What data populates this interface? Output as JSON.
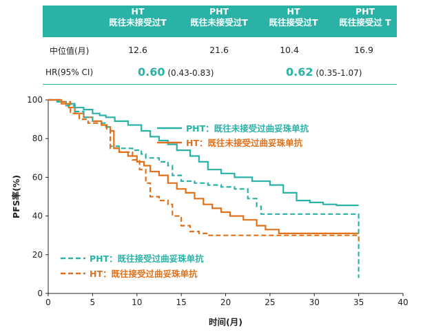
{
  "table": {
    "headers": [
      {
        "arm": "HT",
        "sub": "既往未接受过T"
      },
      {
        "arm": "PHT",
        "sub": "既往未接受过T"
      },
      {
        "arm": "HT",
        "sub": "既往接受过T"
      },
      {
        "arm": "PHT",
        "sub": "既往接受过 T"
      }
    ],
    "median_label": "中位值(月)",
    "median_values": [
      "12.6",
      "21.6",
      "10.4",
      "16.9"
    ],
    "hr_label": "HR(95% CI)",
    "hr": [
      {
        "value": "0.60",
        "ci": "(0.43-0.83)"
      },
      {
        "value": "0.62",
        "ci": "(0.35-1.07)"
      }
    ]
  },
  "colors": {
    "teal": "#2ab2a6",
    "orange": "#e0711c"
  },
  "chart_data": {
    "type": "line",
    "xlabel": "时间(月)",
    "ylabel": "PFS率(%)",
    "xlim": [
      0,
      40
    ],
    "ylim": [
      0,
      100
    ],
    "xticks": [
      0,
      5,
      10,
      15,
      20,
      25,
      30,
      35,
      40
    ],
    "yticks": [
      0,
      20,
      40,
      60,
      80,
      100
    ],
    "series": [
      {
        "name": "PHT：既往未接受过曲妥珠单抗",
        "style": "solid",
        "color": "#2ab2a6",
        "points": [
          [
            0,
            100
          ],
          [
            1.2,
            99
          ],
          [
            2,
            98
          ],
          [
            3,
            96
          ],
          [
            4,
            95
          ],
          [
            5,
            93
          ],
          [
            5.8,
            92
          ],
          [
            6.5,
            91
          ],
          [
            7.5,
            89
          ],
          [
            9,
            87
          ],
          [
            10.5,
            84
          ],
          [
            11.5,
            81
          ],
          [
            12.5,
            79
          ],
          [
            13.5,
            77
          ],
          [
            14.5,
            74
          ],
          [
            16,
            71
          ],
          [
            17,
            68
          ],
          [
            18,
            64
          ],
          [
            19.5,
            62
          ],
          [
            21,
            60
          ],
          [
            23,
            58
          ],
          [
            25,
            56
          ],
          [
            26.5,
            52
          ],
          [
            28,
            48
          ],
          [
            29.5,
            47
          ],
          [
            31,
            46
          ],
          [
            32.5,
            45.5
          ],
          [
            35,
            45.5
          ]
        ]
      },
      {
        "name": "HT：既往未接受过曲妥珠单抗",
        "style": "solid",
        "color": "#e0711c",
        "points": [
          [
            0,
            100
          ],
          [
            1.5,
            98
          ],
          [
            2.3,
            96
          ],
          [
            3,
            93
          ],
          [
            4,
            91
          ],
          [
            5,
            89
          ],
          [
            6,
            87
          ],
          [
            6.6,
            86
          ],
          [
            7,
            84
          ],
          [
            7.4,
            75
          ],
          [
            8,
            73
          ],
          [
            9,
            71
          ],
          [
            10,
            68
          ],
          [
            10.8,
            66
          ],
          [
            11.5,
            63
          ],
          [
            12.5,
            61
          ],
          [
            13.5,
            57
          ],
          [
            14.5,
            54
          ],
          [
            15.5,
            52
          ],
          [
            16.5,
            49
          ],
          [
            17.5,
            46
          ],
          [
            18.5,
            44
          ],
          [
            19.5,
            42
          ],
          [
            20.5,
            40
          ],
          [
            22,
            38
          ],
          [
            23.5,
            35
          ],
          [
            24.5,
            33
          ],
          [
            26,
            31
          ],
          [
            35,
            31
          ]
        ]
      },
      {
        "name": "PHT：既往接受过曲妥珠单抗",
        "style": "dashed",
        "color": "#2ab2a6",
        "points": [
          [
            0,
            100
          ],
          [
            1,
            99
          ],
          [
            2,
            97
          ],
          [
            3,
            94
          ],
          [
            4,
            91
          ],
          [
            5,
            88
          ],
          [
            6.5,
            86
          ],
          [
            7,
            76
          ],
          [
            8,
            75
          ],
          [
            9.5,
            74
          ],
          [
            10.5,
            72
          ],
          [
            11,
            70
          ],
          [
            12.5,
            68
          ],
          [
            13.5,
            66
          ],
          [
            14,
            61
          ],
          [
            15,
            58
          ],
          [
            16.5,
            57
          ],
          [
            18,
            56
          ],
          [
            19.5,
            55
          ],
          [
            21,
            54
          ],
          [
            22.5,
            49
          ],
          [
            23.5,
            45
          ],
          [
            24,
            41
          ],
          [
            35,
            41
          ],
          [
            35,
            8
          ]
        ]
      },
      {
        "name": "HT：既往接受过曲妥珠单抗",
        "style": "dashed",
        "color": "#e0711c",
        "points": [
          [
            0,
            100
          ],
          [
            1.5,
            99
          ],
          [
            2.5,
            93
          ],
          [
            3.5,
            90
          ],
          [
            4.5,
            88
          ],
          [
            6,
            87
          ],
          [
            6.6,
            85
          ],
          [
            7,
            75
          ],
          [
            8,
            73
          ],
          [
            9.5,
            69
          ],
          [
            10.3,
            64
          ],
          [
            11,
            57
          ],
          [
            11.5,
            50
          ],
          [
            12.5,
            48
          ],
          [
            13.5,
            46
          ],
          [
            14,
            40
          ],
          [
            15,
            35
          ],
          [
            16,
            32
          ],
          [
            17,
            31
          ],
          [
            18,
            30
          ],
          [
            35,
            30
          ],
          [
            35,
            27
          ]
        ]
      }
    ],
    "legend": [
      {
        "label": "PHT：既往未接受过曲妥珠单抗",
        "style": "solid",
        "color": "#2ab2a6"
      },
      {
        "label": "HT：既往未接受过曲妥珠单抗",
        "style": "solid",
        "color": "#e0711c"
      },
      {
        "label": "PHT：既往接受过曲妥珠单抗",
        "style": "dashed",
        "color": "#2ab2a6"
      },
      {
        "label": "HT：既往接受过曲妥珠单抗",
        "style": "dashed",
        "color": "#e0711c"
      }
    ]
  }
}
